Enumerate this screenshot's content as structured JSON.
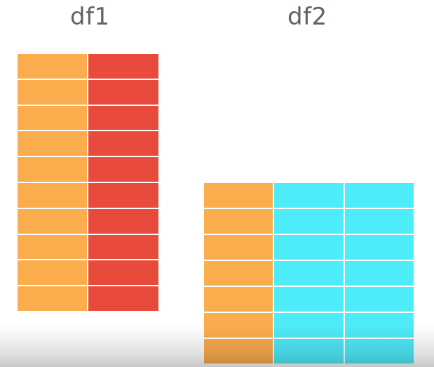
{
  "df1": {
    "title": "df1",
    "rows": 10,
    "column_colors": [
      "#fbac4d",
      "#e84b3c"
    ]
  },
  "df2": {
    "title": "df2",
    "rows": 7,
    "column_colors": [
      "#fbac4d",
      "#4eebf9",
      "#4eebf9"
    ]
  }
}
